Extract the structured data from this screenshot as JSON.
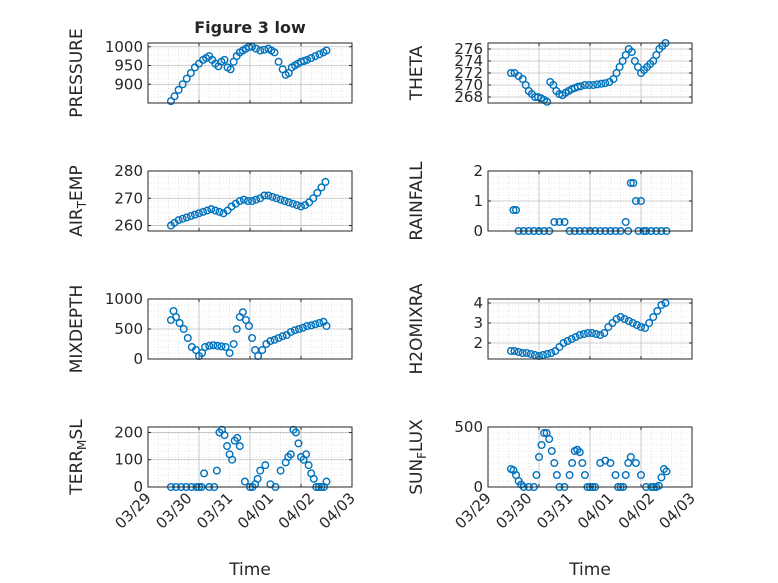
{
  "figure_title": "Figure 3 low",
  "colors": {
    "marker": "#0072BD",
    "axis": "#262626",
    "grid": "#d0d0d0",
    "background": "#ffffff"
  },
  "chart_data": [
    {
      "id": "pressure",
      "type": "scatter",
      "title": "Figure 3 low",
      "xlabel": "",
      "ylabel": "PRESSURE",
      "xlim": [
        0,
        4
      ],
      "ylim": [
        850,
        1010
      ],
      "yticks": [
        900,
        950,
        1000
      ],
      "x": [
        0.45,
        0.52,
        0.6,
        0.68,
        0.76,
        0.84,
        0.92,
        1.0,
        1.08,
        1.14,
        1.2,
        1.26,
        1.32,
        1.38,
        1.44,
        1.5,
        1.56,
        1.62,
        1.68,
        1.74,
        1.8,
        1.86,
        1.92,
        1.98,
        2.04,
        2.12,
        2.2,
        2.28,
        2.36,
        2.42,
        2.48,
        2.56,
        2.64,
        2.7,
        2.76,
        2.82,
        2.88,
        2.94,
        3.0,
        3.06,
        3.12,
        3.2,
        3.28,
        3.36,
        3.44,
        3.5
      ],
      "y": [
        855,
        868,
        885,
        900,
        915,
        930,
        945,
        955,
        965,
        970,
        975,
        965,
        955,
        948,
        960,
        965,
        945,
        940,
        960,
        975,
        985,
        990,
        995,
        1000,
        1000,
        995,
        990,
        992,
        995,
        990,
        985,
        960,
        940,
        925,
        930,
        945,
        950,
        955,
        960,
        962,
        965,
        970,
        975,
        980,
        985,
        990
      ]
    },
    {
      "id": "theta",
      "type": "scatter",
      "title": "",
      "xlabel": "",
      "ylabel": "THETA",
      "xlim": [
        0,
        4
      ],
      "ylim": [
        267,
        277
      ],
      "yticks": [
        268,
        270,
        272,
        274,
        276
      ],
      "x": [
        0.45,
        0.52,
        0.6,
        0.68,
        0.74,
        0.8,
        0.86,
        0.92,
        0.98,
        1.04,
        1.1,
        1.16,
        1.22,
        1.28,
        1.34,
        1.4,
        1.46,
        1.52,
        1.58,
        1.64,
        1.7,
        1.76,
        1.82,
        1.9,
        1.98,
        2.06,
        2.14,
        2.22,
        2.3,
        2.38,
        2.46,
        2.52,
        2.58,
        2.64,
        2.7,
        2.76,
        2.82,
        2.88,
        2.94,
        3.0,
        3.06,
        3.12,
        3.18,
        3.24,
        3.3,
        3.36,
        3.42,
        3.48
      ],
      "y": [
        272,
        272,
        271.5,
        271,
        270,
        269,
        268.5,
        268,
        268,
        267.8,
        267.5,
        267.2,
        270.5,
        270,
        269,
        268.5,
        268.3,
        268.7,
        269,
        269.3,
        269.5,
        269.7,
        269.8,
        270,
        270,
        270,
        270.1,
        270.2,
        270.3,
        270.5,
        271,
        272,
        273,
        274,
        275,
        276,
        275.5,
        274,
        273,
        272,
        272.5,
        273,
        273.5,
        274,
        275,
        276,
        276.5,
        277
      ]
    },
    {
      "id": "air_temp",
      "type": "scatter",
      "title": "",
      "xlabel": "",
      "ylabel": "AIR_TEMP",
      "xlim": [
        0,
        4
      ],
      "ylim": [
        258,
        280
      ],
      "yticks": [
        260,
        270,
        280
      ],
      "x": [
        0.45,
        0.52,
        0.6,
        0.68,
        0.76,
        0.84,
        0.92,
        1.0,
        1.08,
        1.16,
        1.24,
        1.32,
        1.4,
        1.48,
        1.56,
        1.64,
        1.72,
        1.8,
        1.88,
        1.96,
        2.04,
        2.12,
        2.2,
        2.28,
        2.36,
        2.44,
        2.52,
        2.6,
        2.68,
        2.76,
        2.84,
        2.92,
        3.0,
        3.08,
        3.16,
        3.24,
        3.32,
        3.4,
        3.48
      ],
      "y": [
        260,
        261,
        262,
        262.5,
        263,
        263.5,
        264,
        264.5,
        265,
        265.5,
        266,
        265.5,
        265,
        264.5,
        265.5,
        267,
        268,
        269,
        269.5,
        269,
        269,
        269.5,
        270,
        271,
        271,
        270.5,
        270,
        269.5,
        269,
        268.5,
        268,
        267.5,
        267,
        267.5,
        268.5,
        270,
        272,
        274,
        276
      ]
    },
    {
      "id": "rainfall",
      "type": "scatter",
      "title": "",
      "xlabel": "",
      "ylabel": "RAINFALL",
      "xlim": [
        0,
        4
      ],
      "ylim": [
        0,
        2
      ],
      "yticks": [
        0,
        1,
        2
      ],
      "x": [
        0.5,
        0.55,
        0.6,
        0.7,
        0.8,
        0.9,
        1.0,
        1.1,
        1.2,
        1.3,
        1.4,
        1.5,
        1.6,
        1.7,
        1.8,
        1.9,
        2.0,
        2.1,
        2.2,
        2.3,
        2.4,
        2.5,
        2.6,
        2.7,
        2.75,
        2.8,
        2.85,
        2.9,
        2.95,
        3.0,
        3.05,
        3.1,
        3.2,
        3.3,
        3.4,
        3.5
      ],
      "y": [
        0.7,
        0.7,
        0,
        0,
        0,
        0,
        0,
        0,
        0,
        0.3,
        0.3,
        0.3,
        0,
        0,
        0,
        0,
        0,
        0,
        0,
        0,
        0,
        0,
        0,
        0.3,
        0,
        1.6,
        1.6,
        1.0,
        0,
        1.0,
        0,
        0,
        0,
        0,
        0,
        0
      ]
    },
    {
      "id": "mixdepth",
      "type": "scatter",
      "title": "",
      "xlabel": "",
      "ylabel": "MIXDEPTH",
      "xlim": [
        0,
        4
      ],
      "ylim": [
        0,
        1000
      ],
      "yticks": [
        0,
        500,
        1000
      ],
      "x": [
        0.45,
        0.5,
        0.55,
        0.62,
        0.7,
        0.78,
        0.86,
        0.94,
        1.0,
        1.06,
        1.12,
        1.2,
        1.28,
        1.36,
        1.44,
        1.52,
        1.6,
        1.68,
        1.74,
        1.8,
        1.86,
        1.92,
        1.98,
        2.04,
        2.1,
        2.16,
        2.24,
        2.32,
        2.4,
        2.48,
        2.56,
        2.64,
        2.72,
        2.8,
        2.88,
        2.96,
        3.04,
        3.12,
        3.2,
        3.28,
        3.36,
        3.44,
        3.5
      ],
      "y": [
        650,
        800,
        700,
        600,
        500,
        350,
        200,
        150,
        50,
        100,
        200,
        220,
        230,
        220,
        210,
        200,
        100,
        250,
        500,
        700,
        780,
        650,
        550,
        350,
        150,
        50,
        150,
        250,
        300,
        320,
        350,
        380,
        400,
        450,
        480,
        500,
        520,
        550,
        560,
        580,
        600,
        620,
        550
      ]
    },
    {
      "id": "h2omixra",
      "type": "scatter",
      "title": "",
      "xlabel": "",
      "ylabel": "H2OMIXRA",
      "xlim": [
        0,
        4
      ],
      "ylim": [
        1.2,
        4.2
      ],
      "yticks": [
        2,
        3,
        4
      ],
      "x": [
        0.45,
        0.52,
        0.6,
        0.68,
        0.76,
        0.84,
        0.92,
        1.0,
        1.08,
        1.16,
        1.24,
        1.32,
        1.4,
        1.48,
        1.56,
        1.64,
        1.72,
        1.8,
        1.88,
        1.96,
        2.04,
        2.12,
        2.2,
        2.28,
        2.36,
        2.44,
        2.52,
        2.6,
        2.68,
        2.76,
        2.84,
        2.92,
        3.0,
        3.08,
        3.16,
        3.24,
        3.32,
        3.4,
        3.48
      ],
      "y": [
        1.6,
        1.6,
        1.55,
        1.5,
        1.5,
        1.45,
        1.4,
        1.35,
        1.4,
        1.45,
        1.5,
        1.6,
        1.8,
        2.0,
        2.1,
        2.2,
        2.3,
        2.4,
        2.45,
        2.5,
        2.5,
        2.45,
        2.4,
        2.5,
        2.8,
        3.0,
        3.2,
        3.3,
        3.2,
        3.1,
        3.0,
        2.9,
        2.8,
        2.75,
        3.0,
        3.3,
        3.6,
        3.9,
        4.0
      ]
    },
    {
      "id": "terr_msl",
      "type": "scatter",
      "title": "",
      "xlabel": "Time",
      "ylabel": "TERR_MSL",
      "xlim": [
        0,
        4
      ],
      "ylim": [
        0,
        220
      ],
      "yticks": [
        0,
        100,
        200
      ],
      "xtick_labels": [
        "03/29",
        "03/30",
        "03/31",
        "04/01",
        "04/02",
        "04/03"
      ],
      "x": [
        0.45,
        0.55,
        0.65,
        0.75,
        0.85,
        0.95,
        1.0,
        1.05,
        1.1,
        1.2,
        1.3,
        1.35,
        1.4,
        1.45,
        1.5,
        1.55,
        1.6,
        1.65,
        1.7,
        1.75,
        1.8,
        1.9,
        2.0,
        2.05,
        2.1,
        2.15,
        2.2,
        2.3,
        2.4,
        2.5,
        2.6,
        2.7,
        2.75,
        2.8,
        2.85,
        2.9,
        2.95,
        3.0,
        3.05,
        3.1,
        3.15,
        3.2,
        3.25,
        3.3,
        3.35,
        3.4,
        3.45,
        3.5
      ],
      "y": [
        0,
        0,
        0,
        0,
        0,
        0,
        0,
        0,
        50,
        0,
        0,
        60,
        200,
        210,
        190,
        150,
        120,
        100,
        170,
        180,
        150,
        20,
        0,
        0,
        10,
        30,
        60,
        80,
        10,
        0,
        60,
        90,
        110,
        120,
        210,
        200,
        160,
        110,
        100,
        120,
        80,
        50,
        30,
        0,
        0,
        0,
        0,
        20
      ]
    },
    {
      "id": "sun_flux",
      "type": "scatter",
      "title": "",
      "xlabel": "Time",
      "ylabel": "SUN_FLUX",
      "xlim": [
        0,
        4
      ],
      "ylim": [
        0,
        500
      ],
      "yticks": [
        0,
        500
      ],
      "xtick_labels": [
        "03/29",
        "03/30",
        "03/31",
        "04/01",
        "04/02",
        "04/03"
      ],
      "x": [
        0.45,
        0.5,
        0.55,
        0.6,
        0.65,
        0.7,
        0.8,
        0.9,
        0.95,
        1.0,
        1.05,
        1.1,
        1.15,
        1.2,
        1.25,
        1.3,
        1.35,
        1.4,
        1.5,
        1.6,
        1.65,
        1.7,
        1.75,
        1.8,
        1.85,
        1.9,
        1.95,
        2.0,
        2.05,
        2.1,
        2.2,
        2.3,
        2.4,
        2.5,
        2.55,
        2.6,
        2.65,
        2.7,
        2.75,
        2.8,
        2.9,
        3.0,
        3.1,
        3.2,
        3.25,
        3.3,
        3.35,
        3.4,
        3.45,
        3.5
      ],
      "y": [
        150,
        140,
        100,
        50,
        20,
        0,
        0,
        0,
        100,
        250,
        350,
        450,
        450,
        400,
        300,
        200,
        100,
        0,
        0,
        100,
        200,
        300,
        310,
        290,
        200,
        100,
        0,
        0,
        0,
        0,
        200,
        220,
        200,
        100,
        0,
        0,
        0,
        100,
        200,
        250,
        200,
        100,
        0,
        0,
        0,
        0,
        10,
        80,
        150,
        130
      ]
    }
  ]
}
